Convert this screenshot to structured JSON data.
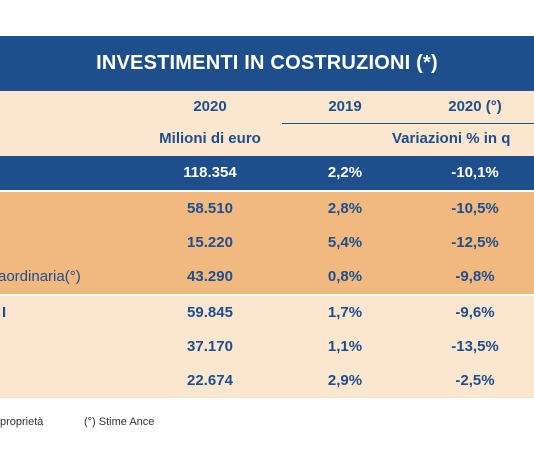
{
  "title": "INVESTIMENTI IN COSTRUZIONI (*)",
  "columns": {
    "year_2020": "2020",
    "year_2019": "2019",
    "year_2020_est": "2020 (°)",
    "unit_millions": "Milioni di euro",
    "unit_variation": "Variazioni % in q"
  },
  "rows": [
    {
      "label": "",
      "v2020": "118.354",
      "v2019": "2,2%",
      "v2020e": "-10,1%",
      "style": "total"
    },
    {
      "label": "",
      "v2020": "58.510",
      "v2019": "2,8%",
      "v2020e": "-10,5%",
      "style": "orange"
    },
    {
      "label": "",
      "v2020": "15.220",
      "v2019": "5,4%",
      "v2020e": "-12,5%",
      "style": "orange"
    },
    {
      "label": "aordinaria(°)",
      "v2020": "43.290",
      "v2019": "0,8%",
      "v2020e": "-9,8%",
      "style": "orange"
    },
    {
      "label": "I",
      "v2020": "59.845",
      "v2019": "1,7%",
      "v2020e": "-9,6%",
      "style": "light"
    },
    {
      "label": "",
      "v2020": "37.170",
      "v2019": "1,1%",
      "v2020e": "-13,5%",
      "style": "light"
    },
    {
      "label": "",
      "v2020": "22.674",
      "v2019": "2,9%",
      "v2020e": "-2,5%",
      "style": "light"
    }
  ],
  "footnotes": {
    "left": "proprietà",
    "right": "(°) Stime Ance"
  },
  "colors": {
    "navy": "#1f4e8c",
    "orange": "#f1b97f",
    "light": "#fbe6cf"
  }
}
